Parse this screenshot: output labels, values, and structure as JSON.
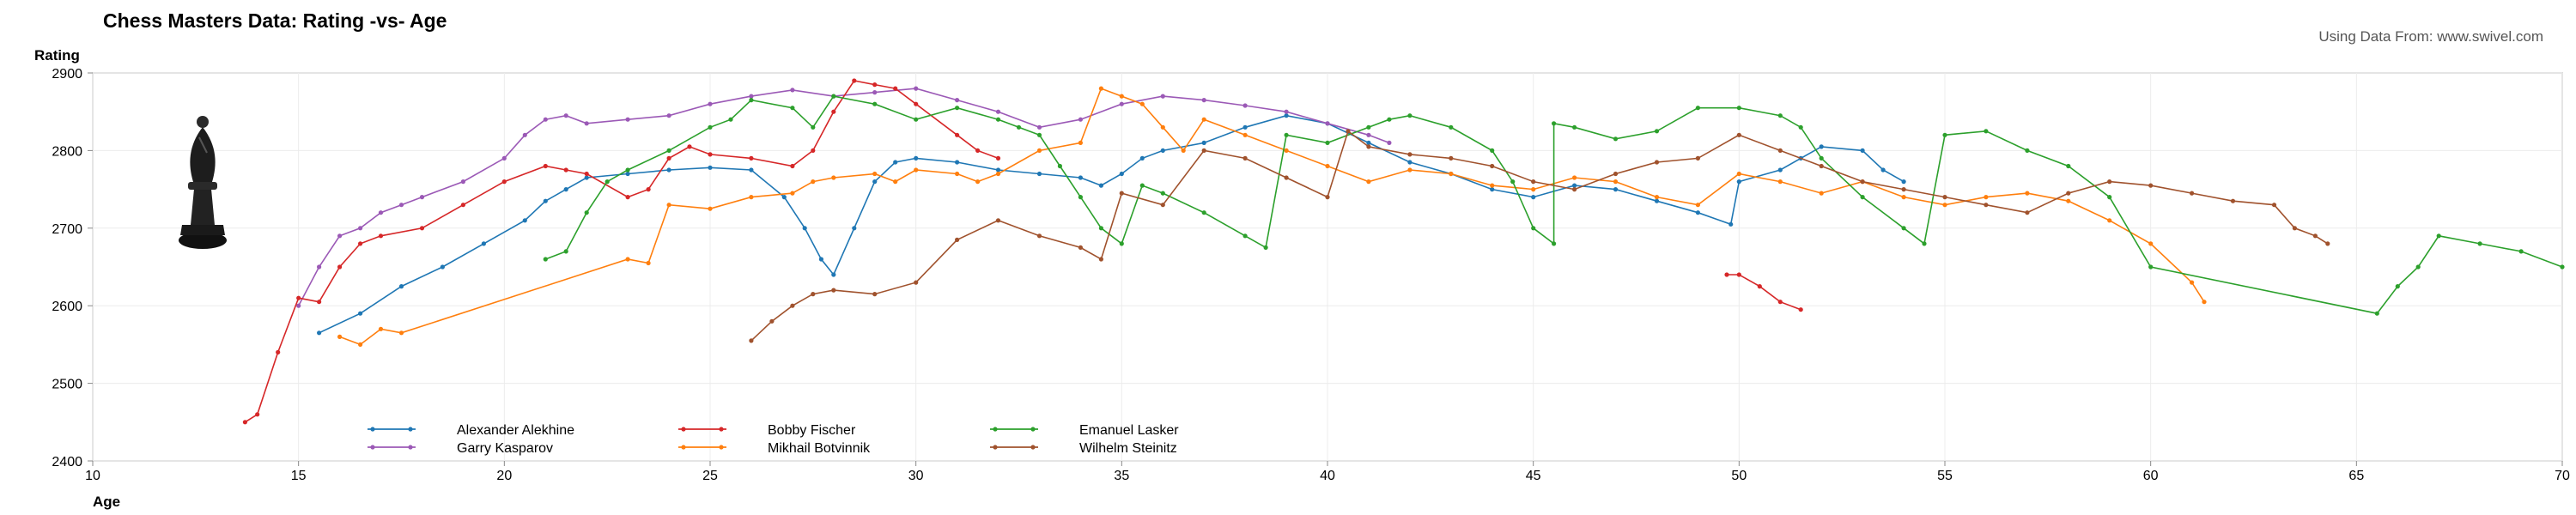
{
  "chart_data": {
    "type": "line",
    "title": "Chess Masters Data:  Rating -vs- Age",
    "source_note": "Using Data From: www.swivel.com",
    "xlabel": "Age",
    "ylabel": "Rating",
    "xlim": [
      10,
      70
    ],
    "ylim": [
      2400,
      2900
    ],
    "x_ticks": [
      "10",
      "15",
      "20",
      "25",
      "30",
      "35",
      "40",
      "45",
      "50",
      "55",
      "60",
      "65",
      "70"
    ],
    "y_ticks": [
      "2400",
      "2500",
      "2600",
      "2700",
      "2800",
      "2900"
    ],
    "grid": true,
    "legend_position": "bottom-left",
    "series": [
      {
        "name": "Alexander Alekhine",
        "color": "#1f77b4",
        "points": [
          [
            15.5,
            2565
          ],
          [
            16.5,
            2590
          ],
          [
            17.5,
            2625
          ],
          [
            18.5,
            2650
          ],
          [
            19.5,
            2680
          ],
          [
            20.5,
            2710
          ],
          [
            21,
            2735
          ],
          [
            21.5,
            2750
          ],
          [
            22,
            2765
          ],
          [
            23,
            2770
          ],
          [
            24,
            2775
          ],
          [
            25,
            2778
          ],
          [
            26,
            2775
          ],
          [
            26.8,
            2740
          ],
          [
            27.3,
            2700
          ],
          [
            27.7,
            2660
          ],
          [
            28,
            2640
          ],
          [
            28.5,
            2700
          ],
          [
            29,
            2760
          ],
          [
            29.5,
            2785
          ],
          [
            30,
            2790
          ],
          [
            31,
            2785
          ],
          [
            32,
            2775
          ],
          [
            33,
            2770
          ],
          [
            34,
            2765
          ],
          [
            34.5,
            2755
          ],
          [
            35,
            2770
          ],
          [
            35.5,
            2790
          ],
          [
            36,
            2800
          ],
          [
            37,
            2810
          ],
          [
            38,
            2830
          ],
          [
            39,
            2845
          ],
          [
            40,
            2835
          ],
          [
            41,
            2810
          ],
          [
            42,
            2785
          ],
          [
            43,
            2770
          ],
          [
            44,
            2750
          ],
          [
            45,
            2740
          ],
          [
            46,
            2755
          ],
          [
            47,
            2750
          ],
          [
            48,
            2735
          ],
          [
            49,
            2720
          ],
          [
            49.8,
            2705
          ],
          [
            50,
            2760
          ],
          [
            51,
            2775
          ],
          [
            51.5,
            2790
          ],
          [
            52,
            2805
          ],
          [
            53,
            2800
          ],
          [
            53.5,
            2775
          ],
          [
            54,
            2760
          ]
        ]
      },
      {
        "name": "Garry Kasparov",
        "color": "#9b59b6",
        "points": [
          [
            15,
            2600
          ],
          [
            15.5,
            2650
          ],
          [
            16,
            2690
          ],
          [
            16.5,
            2700
          ],
          [
            17,
            2720
          ],
          [
            17.5,
            2730
          ],
          [
            18,
            2740
          ],
          [
            19,
            2760
          ],
          [
            20,
            2790
          ],
          [
            20.5,
            2820
          ],
          [
            21,
            2840
          ],
          [
            21.5,
            2845
          ],
          [
            22,
            2835
          ],
          [
            23,
            2840
          ],
          [
            24,
            2845
          ],
          [
            25,
            2860
          ],
          [
            26,
            2870
          ],
          [
            27,
            2878
          ],
          [
            28,
            2870
          ],
          [
            29,
            2875
          ],
          [
            30,
            2880
          ],
          [
            31,
            2865
          ],
          [
            32,
            2850
          ],
          [
            33,
            2830
          ],
          [
            34,
            2840
          ],
          [
            35,
            2860
          ],
          [
            36,
            2870
          ],
          [
            37,
            2865
          ],
          [
            38,
            2858
          ],
          [
            39,
            2850
          ],
          [
            40,
            2835
          ],
          [
            41,
            2820
          ],
          [
            41.5,
            2810
          ]
        ]
      },
      {
        "name": "Bobby Fischer",
        "color": "#d62728",
        "points": [
          [
            13.7,
            2450
          ],
          [
            14,
            2460
          ],
          [
            14.5,
            2540
          ],
          [
            15,
            2610
          ],
          [
            15.5,
            2605
          ],
          [
            16,
            2650
          ],
          [
            16.5,
            2680
          ],
          [
            17,
            2690
          ],
          [
            18,
            2700
          ],
          [
            19,
            2730
          ],
          [
            20,
            2760
          ],
          [
            21,
            2780
          ],
          [
            21.5,
            2775
          ],
          [
            22,
            2770
          ],
          [
            23,
            2740
          ],
          [
            23.5,
            2750
          ],
          [
            24,
            2790
          ],
          [
            24.5,
            2805
          ],
          [
            25,
            2795
          ],
          [
            26,
            2790
          ],
          [
            27,
            2780
          ],
          [
            27.5,
            2800
          ],
          [
            28,
            2850
          ],
          [
            28.5,
            2890
          ],
          [
            29,
            2885
          ],
          [
            29.5,
            2880
          ],
          [
            30,
            2860
          ],
          [
            31,
            2820
          ],
          [
            31.5,
            2800
          ],
          [
            32,
            2790
          ],
          [
            49.7,
            2640
          ],
          [
            50,
            2640
          ],
          [
            50.5,
            2625
          ],
          [
            51,
            2605
          ],
          [
            51.5,
            2595
          ]
        ]
      },
      {
        "name": "Mikhail Botvinnik",
        "color": "#ff7f0e",
        "points": [
          [
            16,
            2560
          ],
          [
            16.5,
            2550
          ],
          [
            17,
            2570
          ],
          [
            17.5,
            2565
          ],
          [
            23,
            2660
          ],
          [
            23.5,
            2655
          ],
          [
            24,
            2730
          ],
          [
            25,
            2725
          ],
          [
            26,
            2740
          ],
          [
            27,
            2745
          ],
          [
            27.5,
            2760
          ],
          [
            28,
            2765
          ],
          [
            29,
            2770
          ],
          [
            29.5,
            2760
          ],
          [
            30,
            2775
          ],
          [
            31,
            2770
          ],
          [
            31.5,
            2760
          ],
          [
            32,
            2770
          ],
          [
            33,
            2800
          ],
          [
            34,
            2810
          ],
          [
            34.5,
            2880
          ],
          [
            35,
            2870
          ],
          [
            35.5,
            2860
          ],
          [
            36,
            2830
          ],
          [
            36.5,
            2800
          ],
          [
            37,
            2840
          ],
          [
            38,
            2820
          ],
          [
            39,
            2800
          ],
          [
            40,
            2780
          ],
          [
            41,
            2760
          ],
          [
            42,
            2775
          ],
          [
            43,
            2770
          ],
          [
            44,
            2755
          ],
          [
            45,
            2750
          ],
          [
            46,
            2765
          ],
          [
            47,
            2760
          ],
          [
            48,
            2740
          ],
          [
            49,
            2730
          ],
          [
            50,
            2770
          ],
          [
            51,
            2760
          ],
          [
            52,
            2745
          ],
          [
            53,
            2760
          ],
          [
            54,
            2740
          ],
          [
            55,
            2730
          ],
          [
            56,
            2740
          ],
          [
            57,
            2745
          ],
          [
            58,
            2735
          ],
          [
            59,
            2710
          ],
          [
            60,
            2680
          ],
          [
            61,
            2630
          ],
          [
            61.3,
            2605
          ]
        ]
      },
      {
        "name": "Emanuel Lasker",
        "color": "#2ca02c",
        "points": [
          [
            21,
            2660
          ],
          [
            21.5,
            2670
          ],
          [
            22,
            2720
          ],
          [
            22.5,
            2760
          ],
          [
            23,
            2775
          ],
          [
            24,
            2800
          ],
          [
            25,
            2830
          ],
          [
            25.5,
            2840
          ],
          [
            26,
            2865
          ],
          [
            27,
            2855
          ],
          [
            27.5,
            2830
          ],
          [
            28,
            2870
          ],
          [
            29,
            2860
          ],
          [
            30,
            2840
          ],
          [
            31,
            2855
          ],
          [
            32,
            2840
          ],
          [
            32.5,
            2830
          ],
          [
            33,
            2820
          ],
          [
            33.5,
            2780
          ],
          [
            34,
            2740
          ],
          [
            34.5,
            2700
          ],
          [
            35,
            2680
          ],
          [
            35.5,
            2755
          ],
          [
            36,
            2745
          ],
          [
            37,
            2720
          ],
          [
            38,
            2690
          ],
          [
            38.5,
            2675
          ],
          [
            39,
            2820
          ],
          [
            40,
            2810
          ],
          [
            41,
            2830
          ],
          [
            41.5,
            2840
          ],
          [
            42,
            2845
          ],
          [
            43,
            2830
          ],
          [
            44,
            2800
          ],
          [
            44.5,
            2760
          ],
          [
            45,
            2700
          ],
          [
            45.5,
            2680
          ],
          [
            45.5,
            2835
          ],
          [
            46,
            2830
          ],
          [
            47,
            2815
          ],
          [
            48,
            2825
          ],
          [
            49,
            2855
          ],
          [
            50,
            2855
          ],
          [
            51,
            2845
          ],
          [
            51.5,
            2830
          ],
          [
            52,
            2790
          ],
          [
            53,
            2740
          ],
          [
            54,
            2700
          ],
          [
            54.5,
            2680
          ],
          [
            55,
            2820
          ],
          [
            56,
            2825
          ],
          [
            57,
            2800
          ],
          [
            58,
            2780
          ],
          [
            59,
            2740
          ],
          [
            60,
            2650
          ],
          [
            65.5,
            2590
          ],
          [
            66,
            2625
          ],
          [
            66.5,
            2650
          ],
          [
            67,
            2690
          ],
          [
            68,
            2680
          ],
          [
            69,
            2670
          ],
          [
            70,
            2650
          ]
        ]
      },
      {
        "name": "Wilhelm Steinitz",
        "color": "#a0522d",
        "points": [
          [
            26,
            2555
          ],
          [
            26.5,
            2580
          ],
          [
            27,
            2600
          ],
          [
            27.5,
            2615
          ],
          [
            28,
            2620
          ],
          [
            29,
            2615
          ],
          [
            30,
            2630
          ],
          [
            31,
            2685
          ],
          [
            32,
            2710
          ],
          [
            33,
            2690
          ],
          [
            34,
            2675
          ],
          [
            34.5,
            2660
          ],
          [
            35,
            2745
          ],
          [
            36,
            2730
          ],
          [
            37,
            2800
          ],
          [
            38,
            2790
          ],
          [
            39,
            2765
          ],
          [
            40,
            2740
          ],
          [
            40.5,
            2825
          ],
          [
            41,
            2805
          ],
          [
            42,
            2795
          ],
          [
            43,
            2790
          ],
          [
            44,
            2780
          ],
          [
            45,
            2760
          ],
          [
            46,
            2750
          ],
          [
            47,
            2770
          ],
          [
            48,
            2785
          ],
          [
            49,
            2790
          ],
          [
            50,
            2820
          ],
          [
            51,
            2800
          ],
          [
            52,
            2780
          ],
          [
            53,
            2760
          ],
          [
            54,
            2750
          ],
          [
            55,
            2740
          ],
          [
            56,
            2730
          ],
          [
            57,
            2720
          ],
          [
            58,
            2745
          ],
          [
            59,
            2760
          ],
          [
            60,
            2755
          ],
          [
            61,
            2745
          ],
          [
            62,
            2735
          ],
          [
            63,
            2730
          ],
          [
            63.5,
            2700
          ],
          [
            64,
            2690
          ],
          [
            64.3,
            2680
          ]
        ]
      }
    ]
  },
  "icons": {
    "chess_piece": "bishop-icon"
  }
}
